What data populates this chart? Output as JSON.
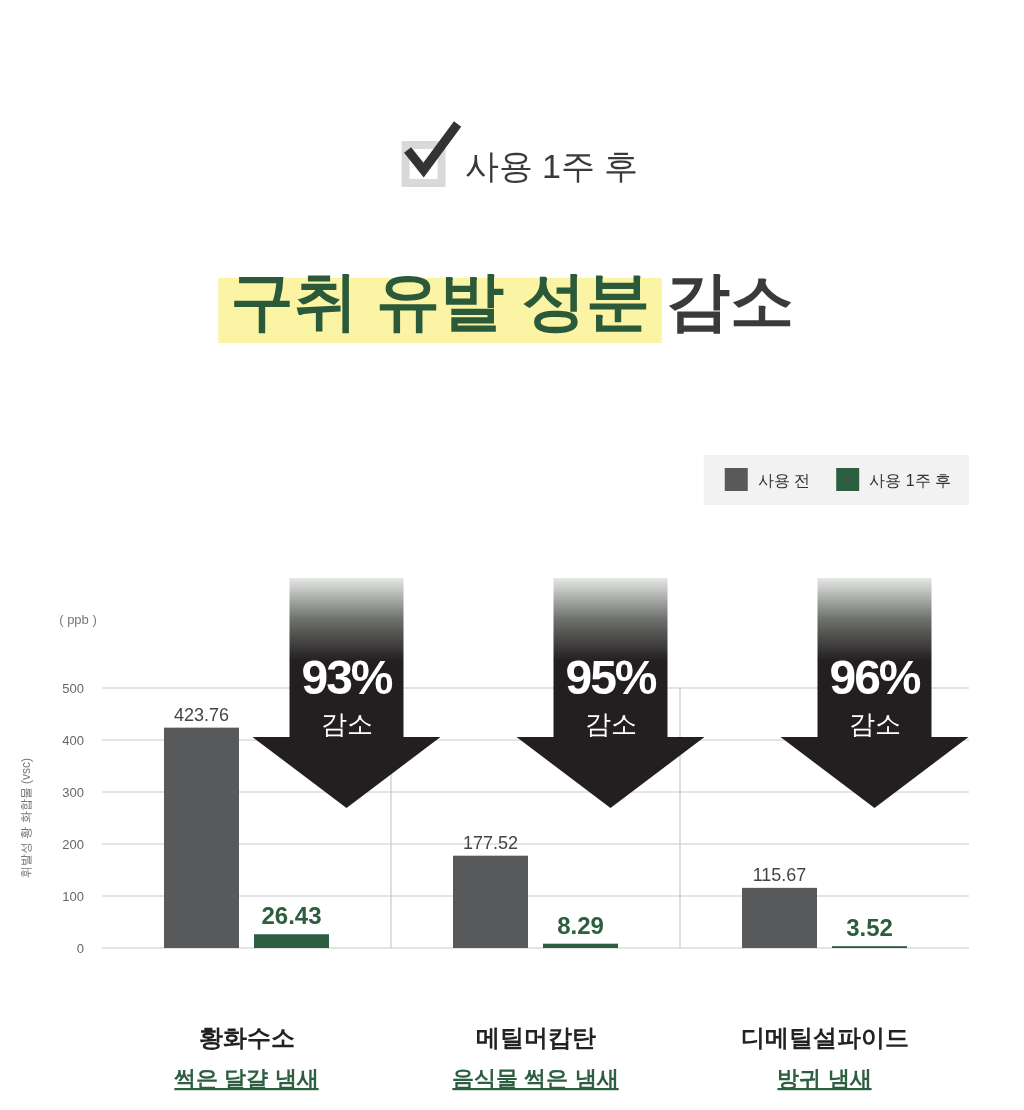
{
  "chart_data": {
    "type": "bar",
    "title": "구취 유발 성분 감소",
    "subtitle": "사용 1주 후",
    "ylabel": "휘발성 황 화합물 (vsc)",
    "categories": [
      "황화수소\n썩은 달걀 냄새",
      "메틸머캅탄\n음식물 썩은 냄새",
      "디메틸설파이드\n방귀 냄새"
    ],
    "series": [
      {
        "name": "사용 전",
        "color": "#58595b",
        "values": [
          423.76,
          177.52,
          115.67
        ]
      },
      {
        "name": "사용 1주 후",
        "color": "#2d5e40",
        "values": [
          26.43,
          8.29,
          3.52
        ]
      }
    ],
    "ylim": [
      0,
      500
    ],
    "yticks": [
      0,
      100,
      200,
      300,
      400,
      500
    ],
    "grid": true,
    "legend": "top right",
    "data_labels": true,
    "annotations": [
      "( ppb )",
      "93% 감소",
      "95% 감소",
      "96% 감소"
    ]
  }
}
